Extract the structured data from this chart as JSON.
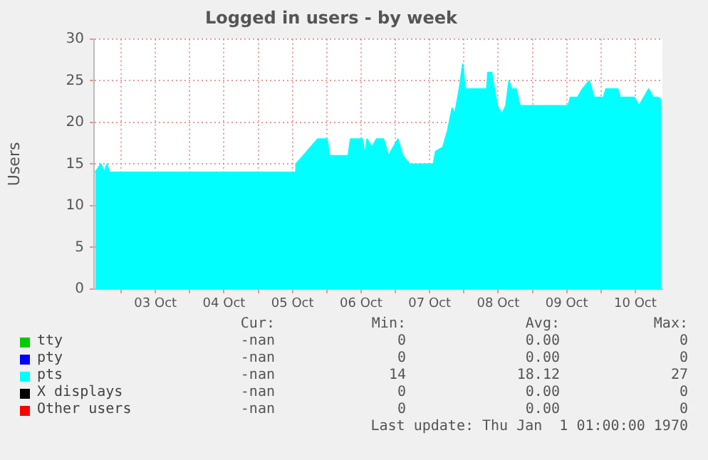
{
  "chart_data": {
    "type": "area",
    "title": "Logged in users - by week",
    "ylabel": "Users",
    "xlim": [
      "--10-02T14:30",
      "--10-10T21:30"
    ],
    "ylim": [
      0,
      30
    ],
    "yticks": [
      0,
      5,
      10,
      15,
      20,
      25,
      30
    ],
    "xticks": [
      {
        "value": "--10-03",
        "label": null
      },
      {
        "value": "--10-03T12:00",
        "label": "03 Oct"
      },
      {
        "value": "--10-04",
        "label": null
      },
      {
        "value": "--10-04T12:00",
        "label": "04 Oct"
      },
      {
        "value": "--10-05",
        "label": null
      },
      {
        "value": "--10-05T12:00",
        "label": "05 Oct"
      },
      {
        "value": "--10-06",
        "label": null
      },
      {
        "value": "--10-06T12:00",
        "label": "06 Oct"
      },
      {
        "value": "--10-07",
        "label": null
      },
      {
        "value": "--10-07T12:00",
        "label": "07 Oct"
      },
      {
        "value": "--10-08",
        "label": null
      },
      {
        "value": "--10-08T12:00",
        "label": "08 Oct"
      },
      {
        "value": "--10-09",
        "label": null
      },
      {
        "value": "--10-09T12:00",
        "label": "09 Oct"
      },
      {
        "value": "--10-10",
        "label": null
      },
      {
        "value": "--10-10T12:00",
        "label": "10 Oct"
      }
    ],
    "grid": true,
    "legend": "bottom",
    "series": [
      {
        "name": "tty",
        "color": "#00cc00"
      },
      {
        "name": "pty",
        "color": "#0000ff"
      },
      {
        "name": "pts",
        "color": "#00ffff",
        "x": [
          "--10-02T14:54",
          "--10-02T16:54",
          "--10-02T18:12",
          "--10-02T19:00",
          "--10-02T19:54",
          "--10-05T13:00",
          "--10-05T13:12",
          "--10-05T18:18",
          "--10-05T20:48",
          "--10-06T00:06",
          "--10-06T00:54",
          "--10-06T07:30",
          "--10-06T08:18",
          "--10-06T12:30",
          "--10-06T13:18",
          "--10-06T14:06",
          "--10-06T15:48",
          "--10-06T17:24",
          "--10-06T19:54",
          "--10-06T21:36",
          "--10-07T00:54",
          "--10-07T02:36",
          "--10-07T05:00",
          "--10-07T13:18",
          "--10-07T14:06",
          "--10-07T16:36",
          "--10-07T18:18",
          "--10-07T19:54",
          "--10-07T20:48",
          "--10-07T22:24",
          "--10-07T23:36",
          "--10-08T00:24",
          "--10-08T08:00",
          "--10-08T08:24",
          "--10-08T09:42",
          "--10-08T11:42",
          "--10-08T13:18",
          "--10-08T14:42",
          "--10-08T15:48",
          "--10-08T16:42",
          "--10-08T18:18",
          "--10-08T19:36",
          "--10-09T12:30",
          "--10-09T13:18",
          "--10-09T15:48",
          "--10-09T17:30",
          "--10-09T19:54",
          "--10-09T21:36",
          "--10-10T00:54",
          "--10-10T01:42",
          "--10-10T05:54",
          "--10-10T06:42",
          "--10-10T11:42",
          "--10-10T13:18",
          "--10-10T15:00",
          "--10-10T16:42",
          "--10-10T18:18",
          "--10-10T20:00",
          "--10-10T21:06"
        ],
        "values": [
          14,
          15,
          14,
          15,
          14,
          14,
          15,
          17,
          18,
          18,
          16,
          16,
          18,
          18,
          16,
          18,
          17,
          18,
          18,
          16,
          18,
          16,
          15,
          15,
          16.5,
          17,
          19,
          21.7,
          21,
          24,
          27,
          24,
          24,
          26,
          26,
          22,
          21,
          22,
          25,
          24,
          24,
          22,
          22,
          23,
          23,
          24,
          25,
          23,
          23,
          24,
          24,
          23,
          23,
          22,
          23,
          24,
          23,
          23,
          22.7
        ]
      },
      {
        "name": "X displays",
        "color": "#000000"
      },
      {
        "name": "Other users",
        "color": "#ff0000"
      }
    ],
    "annotations": [
      "Cur:",
      "Min:",
      "Avg:",
      "Max:",
      "-nan",
      "0",
      "0.00",
      "0",
      "-nan",
      "0",
      "0.00",
      "0",
      "-nan",
      "14",
      "18.12",
      "27",
      "-nan",
      "0",
      "0.00",
      "0",
      "-nan",
      "0",
      "0.00",
      "0",
      "Last update: Thu Jan  1 01:00:00 1970"
    ]
  }
}
